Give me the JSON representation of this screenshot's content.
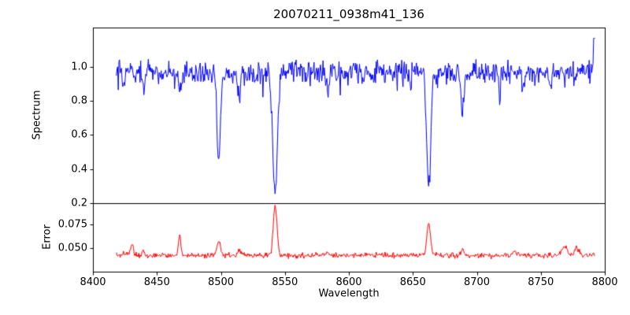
{
  "chart_data": {
    "type": "line",
    "title": "20070211_0938m41_136",
    "xlabel": "Wavelength",
    "background": "#ffffff",
    "axis_color": "#000000",
    "xlim": [
      8400,
      8800
    ],
    "x_tick_values": [
      8400,
      8450,
      8500,
      8550,
      8600,
      8650,
      8700,
      8750,
      8800
    ],
    "x_tick_labels": [
      "8400",
      "8450",
      "8500",
      "8550",
      "8600",
      "8650",
      "8700",
      "8750",
      "8800"
    ],
    "x_data_range": [
      8418,
      8792
    ],
    "grid": false,
    "legend": null,
    "panels": [
      {
        "name": "spectrum",
        "ylabel": "Spectrum",
        "ylim": [
          0.2,
          1.23
        ],
        "y_tick_values": [
          0.2,
          0.4,
          0.6,
          0.8,
          1.0
        ],
        "y_tick_labels": [
          "0.2",
          "0.4",
          "0.6",
          "0.8",
          "1.0"
        ],
        "color": "#0000ff",
        "continuum": 0.97,
        "noise_sigma": 0.033,
        "random_dip_probability": 0.018,
        "random_dip_max_depth": 0.16,
        "absorption_lines": [
          {
            "center": 8498.0,
            "depth": 0.5,
            "width": 1.3
          },
          {
            "center": 8542.1,
            "depth": 0.72,
            "width": 1.8
          },
          {
            "center": 8662.1,
            "depth": 0.66,
            "width": 1.6
          },
          {
            "center": 8688.6,
            "depth": 0.23,
            "width": 1.2
          }
        ],
        "minor_lines": [
          {
            "center": 8424.0,
            "depth": 0.08,
            "width": 0.9
          },
          {
            "center": 8439.0,
            "depth": 0.1,
            "width": 0.9
          },
          {
            "center": 8467.5,
            "depth": 0.13,
            "width": 0.9
          },
          {
            "center": 8514.0,
            "depth": 0.16,
            "width": 1.0
          },
          {
            "center": 8527.0,
            "depth": 0.08,
            "width": 0.8
          },
          {
            "center": 8583.0,
            "depth": 0.08,
            "width": 0.9
          },
          {
            "center": 8611.0,
            "depth": 0.07,
            "width": 0.8
          },
          {
            "center": 8648.0,
            "depth": 0.07,
            "width": 0.8
          },
          {
            "center": 8717.0,
            "depth": 0.06,
            "width": 0.8
          },
          {
            "center": 8736.0,
            "depth": 0.07,
            "width": 0.9
          },
          {
            "center": 8757.0,
            "depth": 0.06,
            "width": 0.8
          }
        ],
        "end_spike": {
          "x": 8791.5,
          "value": 1.17
        }
      },
      {
        "name": "error",
        "ylabel": "Error",
        "ylim": [
          0.025,
          0.097
        ],
        "y_tick_values": [
          0.05,
          0.075
        ],
        "y_tick_labels": [
          "0.050",
          "0.075"
        ],
        "color": "#ff0000",
        "baseline": 0.042,
        "noise_sigma": 0.0013,
        "random_bump_probability": 0.008,
        "random_bump_max_height": 0.005,
        "peaks": [
          {
            "center": 8430.0,
            "height": 0.012,
            "width": 1.0
          },
          {
            "center": 8439.0,
            "height": 0.005,
            "width": 0.8
          },
          {
            "center": 8467.5,
            "height": 0.022,
            "width": 0.9
          },
          {
            "center": 8498.0,
            "height": 0.016,
            "width": 1.3
          },
          {
            "center": 8514.0,
            "height": 0.006,
            "width": 1.0
          },
          {
            "center": 8542.1,
            "height": 0.051,
            "width": 1.5
          },
          {
            "center": 8583.0,
            "height": 0.004,
            "width": 1.0
          },
          {
            "center": 8662.1,
            "height": 0.034,
            "width": 1.4
          },
          {
            "center": 8688.6,
            "height": 0.007,
            "width": 1.0
          },
          {
            "center": 8730.0,
            "height": 0.004,
            "width": 1.5
          },
          {
            "center": 8768.0,
            "height": 0.01,
            "width": 2.0
          },
          {
            "center": 8778.0,
            "height": 0.007,
            "width": 1.5
          }
        ]
      }
    ]
  }
}
